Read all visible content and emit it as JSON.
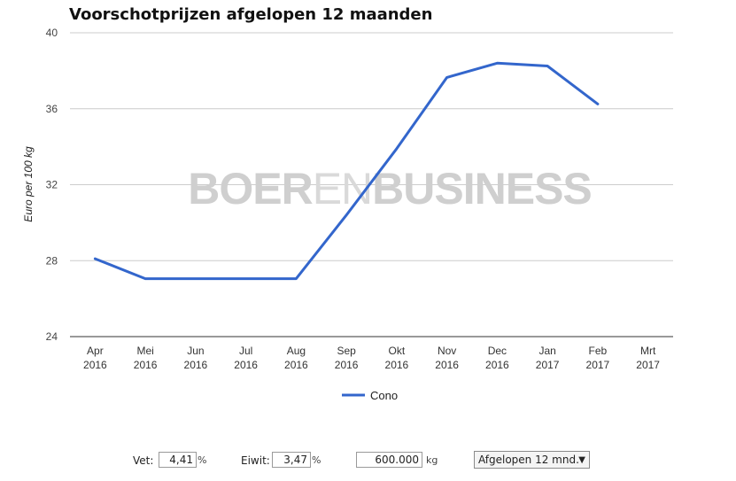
{
  "chart_data": {
    "type": "line",
    "title": "Voorschotprijzen afgelopen 12 maanden",
    "ylabel": "Euro per 100 kg",
    "xlabel": "",
    "ylim": [
      24,
      40
    ],
    "yticks": [
      24,
      28,
      32,
      36,
      40
    ],
    "categories": [
      [
        "Apr",
        "2016"
      ],
      [
        "Mei",
        "2016"
      ],
      [
        "Jun",
        "2016"
      ],
      [
        "Jul",
        "2016"
      ],
      [
        "Aug",
        "2016"
      ],
      [
        "Sep",
        "2016"
      ],
      [
        "Okt",
        "2016"
      ],
      [
        "Nov",
        "2016"
      ],
      [
        "Dec",
        "2016"
      ],
      [
        "Jan",
        "2017"
      ],
      [
        "Feb",
        "2017"
      ],
      [
        "Mrt",
        "2017"
      ]
    ],
    "series": [
      {
        "name": "Cono",
        "color": "#3366cc",
        "values": [
          28.1,
          27.05,
          27.05,
          27.05,
          27.05,
          30.4,
          33.9,
          37.65,
          38.4,
          38.25,
          36.25,
          null
        ]
      }
    ],
    "grid": true,
    "legend": "bottom-center",
    "watermark": "BOERENBUSINESS",
    "watermark_parts": {
      "bold_a": "BOER",
      "light": "EN",
      "bold_b": "BUSINESS"
    }
  },
  "controls": {
    "vet_label": "Vet:",
    "vet_value": "4,41",
    "vet_unit": "%",
    "eiwit_label": "Eiwit:",
    "eiwit_value": "3,47",
    "eiwit_unit": "%",
    "kg_value": "600.000",
    "kg_unit": "kg",
    "period_value": "Afgelopen 12 mnd.",
    "period_caret": "▼"
  }
}
